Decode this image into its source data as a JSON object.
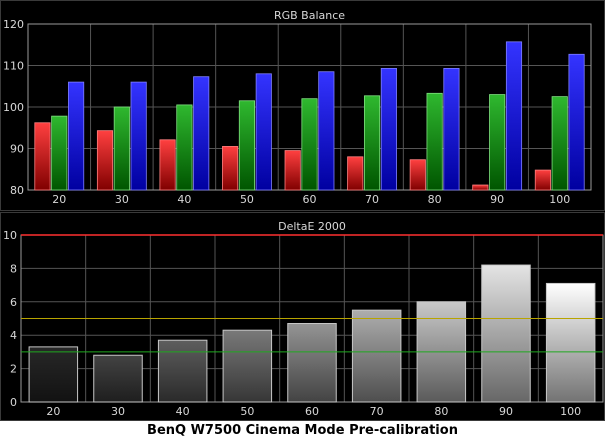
{
  "caption": "BenQ W7500 Cinema Mode Pre-calibration",
  "colors": {
    "background": "#000000",
    "panel_border": "#9a9a9a",
    "grid": "#555555",
    "text": "#d8d8d8",
    "red_bar": "#ff4040",
    "green_bar": "#2fb82f",
    "blue_bar": "#3434ff",
    "deltae_line_high": "#ff3030",
    "deltae_line_mid": "#b8a400",
    "deltae_line_low": "#1fa81f"
  },
  "chart_data": [
    {
      "type": "bar",
      "title": "RGB Balance",
      "categories": [
        "20",
        "30",
        "40",
        "50",
        "60",
        "70",
        "80",
        "90",
        "100"
      ],
      "ylim": [
        80,
        120
      ],
      "yticks": [
        80,
        90,
        100,
        110,
        120
      ],
      "grid": true,
      "series": [
        {
          "color": "red",
          "values": [
            96.2,
            94.3,
            92.1,
            90.5,
            89.5,
            88.0,
            87.3,
            81.2,
            84.8
          ]
        },
        {
          "color": "green",
          "values": [
            97.8,
            100.0,
            100.5,
            101.5,
            102.0,
            102.7,
            103.3,
            103.0,
            102.5
          ]
        },
        {
          "color": "blue",
          "values": [
            106.0,
            106.0,
            107.3,
            108.0,
            108.5,
            109.3,
            109.3,
            115.7,
            112.7
          ]
        }
      ]
    },
    {
      "type": "bar",
      "title": "DeltaE 2000",
      "categories": [
        "20",
        "30",
        "40",
        "50",
        "60",
        "70",
        "80",
        "90",
        "100"
      ],
      "ylim": [
        0,
        10
      ],
      "yticks": [
        0,
        2,
        4,
        6,
        8,
        10
      ],
      "grid": true,
      "reference_lines": [
        10,
        5,
        3
      ],
      "values": [
        3.3,
        2.8,
        3.7,
        4.3,
        4.7,
        5.5,
        6.0,
        8.2,
        7.1
      ]
    }
  ]
}
